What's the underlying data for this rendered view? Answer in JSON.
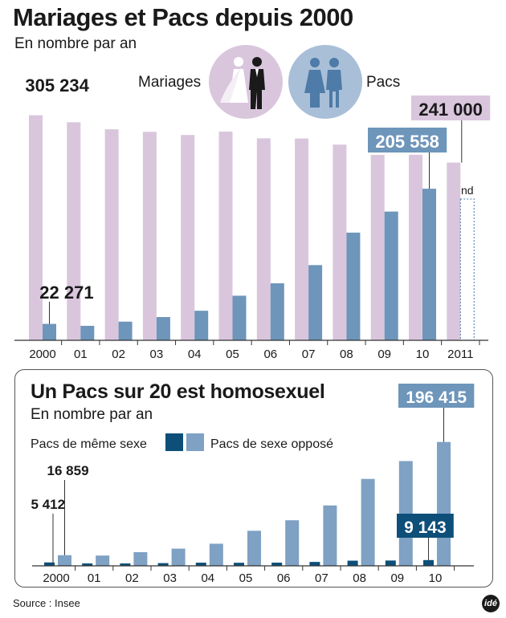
{
  "title": "Mariages et Pacs depuis 2000",
  "subtitle": "En nombre par an",
  "panel": {
    "title": "Un Pacs sur 20 est homosexuel",
    "subtitle": "En nombre par an"
  },
  "source": "Source : Insee",
  "logo_text": "idé",
  "colors": {
    "mariages": "#d9c6dd",
    "pacs": "#6e95ba",
    "meme_sexe": "#0d4f78",
    "sexe_oppose": "#7ea1c4",
    "label_box_blue": "#6e95ba",
    "label_box_purple": "#d9c6dd",
    "label_box_dark": "#0d4f78"
  },
  "icons": [
    "wedding-couple-icon",
    "pacs-couple-icon"
  ],
  "chart_data": [
    {
      "type": "bar",
      "title": "Mariages et Pacs depuis 2000",
      "subtitle": "En nombre par an",
      "categories": [
        "2000",
        "01",
        "02",
        "03",
        "04",
        "05",
        "06",
        "07",
        "08",
        "09",
        "10",
        "2011"
      ],
      "series": [
        {
          "name": "Mariages",
          "values": [
            305234,
            295720,
            286169,
            282756,
            278439,
            283036,
            273914,
            273669,
            265404,
            251478,
            251654,
            241000
          ]
        },
        {
          "name": "Pacs",
          "values": [
            22271,
            19629,
            25305,
            31585,
            40080,
            60473,
            77347,
            101978,
            146030,
            174584,
            205558,
            null
          ]
        }
      ],
      "annotations": [
        {
          "text": "305 234",
          "category": "2000",
          "series": "Mariages"
        },
        {
          "text": "22 271",
          "category": "2000",
          "series": "Pacs"
        },
        {
          "text": "205 558",
          "category": "10",
          "series": "Pacs"
        },
        {
          "text": "241 000",
          "category": "2011",
          "series": "Mariages"
        },
        {
          "text": "nd",
          "category": "2011",
          "series": "Pacs"
        }
      ],
      "ylim": [
        0,
        320000
      ],
      "grid": false,
      "legend": "top"
    },
    {
      "type": "bar",
      "title": "Un Pacs sur 20 est homosexuel",
      "subtitle": "En nombre par an",
      "categories": [
        "2000",
        "01",
        "02",
        "03",
        "04",
        "05",
        "06",
        "07",
        "08",
        "09",
        "10"
      ],
      "series": [
        {
          "name": "Pacs de même sexe",
          "values": [
            5412,
            3323,
            3622,
            4312,
            5023,
            4855,
            5071,
            6208,
            8201,
            8436,
            9143
          ]
        },
        {
          "name": "Pacs de sexe opposé",
          "values": [
            16859,
            16306,
            21683,
            27273,
            35057,
            55618,
            72276,
            95770,
            137829,
            166148,
            196415
          ]
        }
      ],
      "annotations": [
        {
          "text": "5 412",
          "category": "2000",
          "series": "Pacs de même sexe"
        },
        {
          "text": "16 859",
          "category": "2000",
          "series": "Pacs de sexe opposé"
        },
        {
          "text": "9 143",
          "category": "10",
          "series": "Pacs de même sexe"
        },
        {
          "text": "196 415",
          "category": "10",
          "series": "Pacs de sexe opposé"
        }
      ],
      "ylim": [
        0,
        210000
      ],
      "grid": false,
      "legend": "top-left"
    }
  ]
}
